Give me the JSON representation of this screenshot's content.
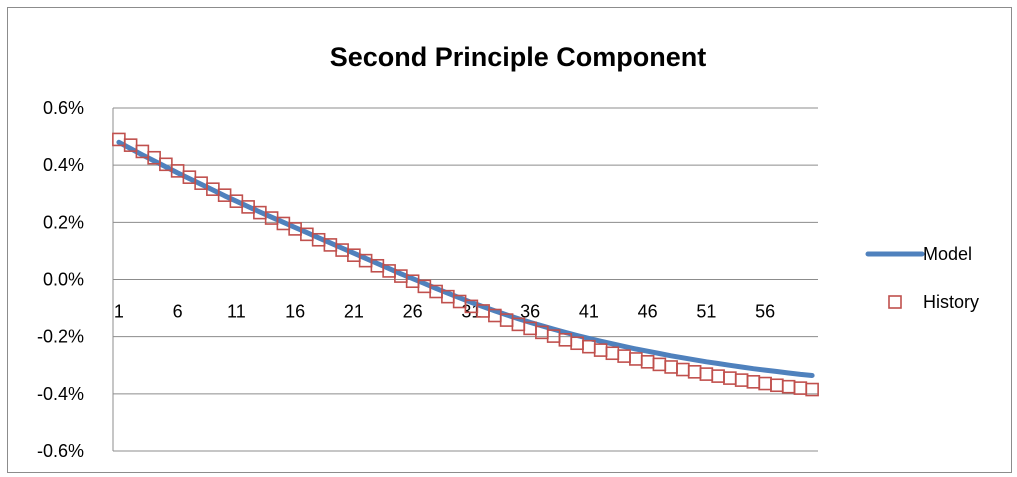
{
  "chart_data": {
    "type": "line",
    "title": "Second Principle Component",
    "xlabel": "",
    "ylabel": "",
    "x_tick_labels": [
      "1",
      "6",
      "11",
      "16",
      "21",
      "26",
      "31",
      "36",
      "41",
      "46",
      "51",
      "56"
    ],
    "x": [
      1,
      2,
      3,
      4,
      5,
      6,
      7,
      8,
      9,
      10,
      11,
      12,
      13,
      14,
      15,
      16,
      17,
      18,
      19,
      20,
      21,
      22,
      23,
      24,
      25,
      26,
      27,
      28,
      29,
      30,
      31,
      32,
      33,
      34,
      35,
      36,
      37,
      38,
      39,
      40,
      41,
      42,
      43,
      44,
      45,
      46,
      47,
      48,
      49,
      50,
      51,
      52,
      53,
      54,
      55,
      56,
      57,
      58,
      59,
      60
    ],
    "y_tick_labels": [
      "0.6%",
      "0.4%",
      "0.2%",
      "0.0%",
      "-0.2%",
      "-0.4%",
      "-0.6%"
    ],
    "ylim": [
      -0.6,
      0.6
    ],
    "y_unit": "%",
    "grid": "horizontal",
    "legend_position": "right",
    "series": [
      {
        "name": "Model",
        "style": "line",
        "color": "#4f81bd",
        "values": [
          0.48,
          0.458,
          0.436,
          0.415,
          0.394,
          0.373,
          0.353,
          0.333,
          0.313,
          0.293,
          0.274,
          0.255,
          0.236,
          0.218,
          0.2,
          0.182,
          0.164,
          0.146,
          0.128,
          0.11,
          0.092,
          0.074,
          0.056,
          0.038,
          0.02,
          0.003,
          -0.014,
          -0.031,
          -0.048,
          -0.064,
          -0.08,
          -0.095,
          -0.11,
          -0.124,
          -0.137,
          -0.15,
          -0.162,
          -0.174,
          -0.185,
          -0.196,
          -0.206,
          -0.216,
          -0.225,
          -0.234,
          -0.243,
          -0.251,
          -0.259,
          -0.267,
          -0.274,
          -0.281,
          -0.288,
          -0.294,
          -0.3,
          -0.306,
          -0.312,
          -0.317,
          -0.322,
          -0.327,
          -0.332,
          -0.336
        ]
      },
      {
        "name": "History",
        "style": "marker",
        "marker": "square",
        "color": "#c0504d",
        "values": [
          0.49,
          0.47,
          0.448,
          0.426,
          0.403,
          0.38,
          0.358,
          0.337,
          0.316,
          0.295,
          0.274,
          0.254,
          0.234,
          0.215,
          0.196,
          0.177,
          0.158,
          0.139,
          0.121,
          0.103,
          0.085,
          0.066,
          0.048,
          0.03,
          0.012,
          -0.006,
          -0.024,
          -0.042,
          -0.06,
          -0.077,
          -0.094,
          -0.11,
          -0.126,
          -0.142,
          -0.157,
          -0.171,
          -0.185,
          -0.198,
          -0.211,
          -0.223,
          -0.235,
          -0.247,
          -0.258,
          -0.268,
          -0.278,
          -0.288,
          -0.297,
          -0.306,
          -0.315,
          -0.323,
          -0.331,
          -0.338,
          -0.345,
          -0.352,
          -0.358,
          -0.364,
          -0.37,
          -0.375,
          -0.38,
          -0.385
        ]
      }
    ]
  }
}
